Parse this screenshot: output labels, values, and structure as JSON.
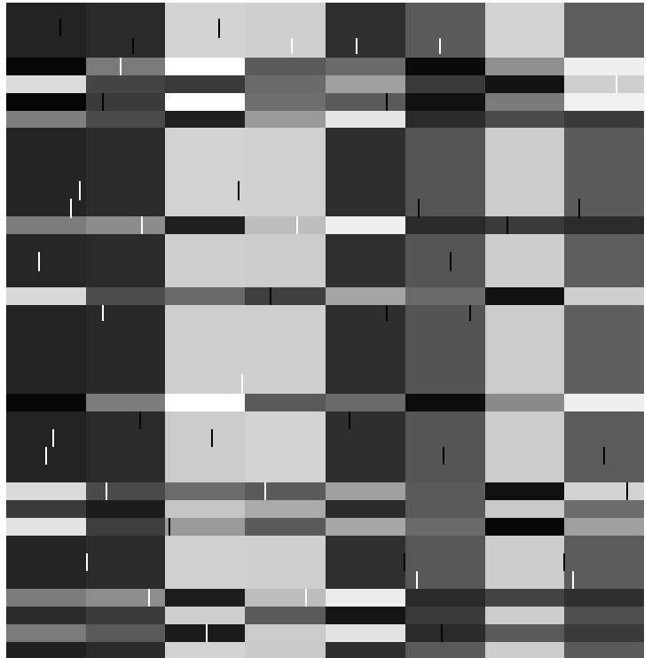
{
  "image": {
    "description_kind": "grayscale-block-mosaic",
    "columns": 8,
    "background": "#ffffff",
    "column_base_tones": [
      "#222222",
      "#2a2a2a",
      "#cfcfcf",
      "#d0d0d0",
      "#2e2e2e",
      "#555555",
      "#cccccc",
      "#5c5c5c"
    ],
    "stripe_tones": {
      "black": "#050505",
      "near_black": "#161616",
      "dark": "#333333",
      "mid_dark": "#5a5a5a",
      "mid": "#808080",
      "mid_light": "#9f9f9f",
      "light": "#c6c6c6",
      "very_light": "#e4e4e4",
      "white": "#ffffff"
    },
    "tick_colors": {
      "dark": "#000000",
      "light": "#ffffff"
    },
    "rows": [
      {
        "kind": "block",
        "tones": [
          "#232323",
          "#2a2a2a",
          "#d3d3d3",
          "#cfcfcf",
          "#2f2f2f",
          "#5a5a5a",
          "#d2d2d2",
          "#5d5d5d"
        ]
      },
      {
        "kind": "stripe",
        "tones": [
          "#050505",
          "#7a7a7a",
          "#ffffff",
          "#5a5a5a",
          "#6a6a6a",
          "#0a0a0a",
          "#8f8f8f",
          "#efefef"
        ]
      },
      {
        "kind": "stripe",
        "tones": [
          "#dcdcdc",
          "#444444",
          "#3a3a3a",
          "#6a6a6a",
          "#9f9f9f",
          "#3a3a3a",
          "#121212",
          "#cfcfcf"
        ]
      },
      {
        "kind": "stripe",
        "tones": [
          "#060606",
          "#3b3b3b",
          "#ffffff",
          "#6e6e6e",
          "#5a5a5a",
          "#111111",
          "#7a7a7a",
          "#f0f0f0"
        ]
      },
      {
        "kind": "stripe",
        "tones": [
          "#7f7f7f",
          "#4a4a4a",
          "#202020",
          "#9a9a9a",
          "#e6e6e6",
          "#2a2a2a",
          "#4a4a4a",
          "#3a3a3a"
        ]
      },
      {
        "kind": "block",
        "tones": [
          "#242424",
          "#2b2b2b",
          "#d2d2d2",
          "#d0d0d0",
          "#2d2d2d",
          "#555555",
          "#cdcdcd",
          "#5a5a5a"
        ]
      },
      {
        "kind": "stripe",
        "tones": [
          "#7c7c7c",
          "#8c8c8c",
          "#1f1f1f",
          "#bdbdbd",
          "#efefef",
          "#2a2a2a",
          "#3a3a3a",
          "#2c2c2c"
        ]
      },
      {
        "kind": "block",
        "tones": [
          "#262626",
          "#2a2a2a",
          "#cfcfcf",
          "#cccccc",
          "#2f2f2f",
          "#555555",
          "#cdcdcd",
          "#5d5d5d"
        ]
      },
      {
        "kind": "stripe",
        "tones": [
          "#d8d8d8",
          "#4d4d4d",
          "#6a6a6a",
          "#3f3f3f",
          "#a5a5a5",
          "#6a6a6a",
          "#121212",
          "#cfcfcf"
        ]
      },
      {
        "kind": "block",
        "tones": [
          "#222222",
          "#292929",
          "#cfcfcf",
          "#cfcfcf",
          "#2d2d2d",
          "#545454",
          "#cbcbcb",
          "#5e5e5e"
        ]
      },
      {
        "kind": "stripe",
        "tones": [
          "#060606",
          "#7b7b7b",
          "#fefefe",
          "#5a5a5a",
          "#6a6a6a",
          "#0c0c0c",
          "#8a8a8a",
          "#efefef"
        ]
      },
      {
        "kind": "block",
        "tones": [
          "#222222",
          "#2b2b2b",
          "#cbcbcb",
          "#d2d2d2",
          "#2e2e2e",
          "#565656",
          "#cccccc",
          "#5b5b5b"
        ]
      },
      {
        "kind": "stripe",
        "tones": [
          "#dadada",
          "#4b4b4b",
          "#6b6b6b",
          "#5a5a5a",
          "#a0a0a0",
          "#5a5a5a",
          "#0f0f0f",
          "#d3d3d3"
        ]
      },
      {
        "kind": "stripe",
        "tones": [
          "#3a3a3a",
          "#1c1c1c",
          "#c5c5c5",
          "#aaaaaa",
          "#2a2a2a",
          "#5a5a5a",
          "#c9c9c9",
          "#6c6c6c"
        ]
      },
      {
        "kind": "stripe",
        "tones": [
          "#e3e3e3",
          "#3e3e3e",
          "#9a9a9a",
          "#5a5a5a",
          "#a6a6a6",
          "#6a6a6a",
          "#070707",
          "#9f9f9f"
        ]
      },
      {
        "kind": "block",
        "tones": [
          "#242424",
          "#2b2b2b",
          "#d0d0d0",
          "#cfcfcf",
          "#2f2f2f",
          "#575757",
          "#cdcdcd",
          "#5c5c5c"
        ]
      },
      {
        "kind": "stripe",
        "tones": [
          "#7b7b7b",
          "#8d8d8d",
          "#1d1d1d",
          "#bdbdbd",
          "#ececec",
          "#2a2a2a",
          "#444444",
          "#2f2f2f"
        ]
      },
      {
        "kind": "stripe",
        "tones": [
          "#2a2a2a",
          "#3a3a3a",
          "#cfcfcf",
          "#5a5a5a",
          "#141414",
          "#3a3a3a",
          "#cccccc",
          "#4f4f4f"
        ]
      },
      {
        "kind": "stripe",
        "tones": [
          "#7a7a7a",
          "#5a5a5a",
          "#1a1a1a",
          "#cbcbcb",
          "#e2e2e2",
          "#2a2a2a",
          "#5a5a5a",
          "#3a3a3a"
        ]
      },
      {
        "kind": "stripe",
        "tones": [
          "#1f1f1f",
          "#2b2b2b",
          "#d2d2d2",
          "#c9c9c9",
          "#2e2e2e",
          "#5a5a5a",
          "#cccccc",
          "#5a5a5a"
        ]
      }
    ]
  }
}
